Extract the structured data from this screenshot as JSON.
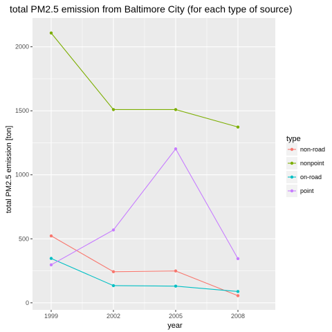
{
  "chart_data": {
    "type": "line",
    "title": "total PM2.5 emission from Baltimore City (for each type of source)",
    "xlabel": "year",
    "ylabel": "total PM2.5 emission [ton]",
    "x": [
      1999,
      2002,
      2005,
      2008
    ],
    "x_tick_labels": [
      "1999",
      "2002",
      "2005",
      "2008"
    ],
    "xlim": [
      1998.1,
      2009.8
    ],
    "ylim": [
      -55,
      2225
    ],
    "y_ticks": [
      0,
      500,
      1000,
      1500,
      2000
    ],
    "y_tick_labels": [
      "0",
      "500",
      "1000",
      "1500",
      "2000"
    ],
    "grid": true,
    "legend": {
      "title": "type",
      "position": "right"
    },
    "series": [
      {
        "name": "non-road",
        "color": "#F8766D",
        "values": [
          522.9,
          242.9,
          248.9,
          55.8
        ]
      },
      {
        "name": "nonpoint",
        "color": "#7CAE00",
        "values": [
          2107.6,
          1509.5,
          1509.5,
          1373.2
        ]
      },
      {
        "name": "on-road",
        "color": "#00BFC4",
        "values": [
          346.8,
          134.3,
          130.4,
          88.3
        ]
      },
      {
        "name": "point",
        "color": "#C77CFF",
        "values": [
          296.8,
          569.3,
          1202.5,
          344.98
        ]
      }
    ]
  }
}
